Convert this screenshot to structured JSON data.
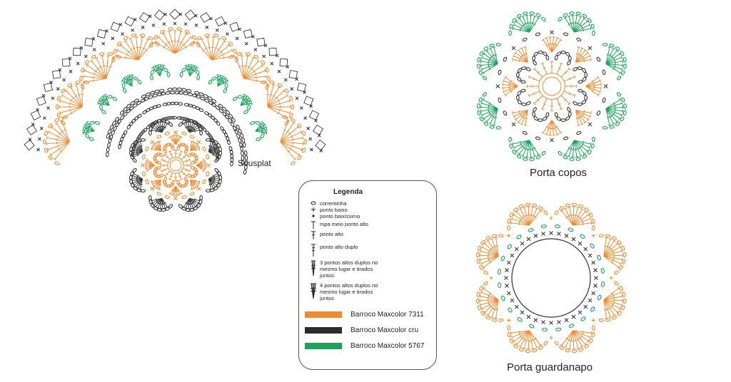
{
  "diagrams": {
    "sousplat": {
      "label": "Sousplat"
    },
    "porta_copos": {
      "label": "Porta copos"
    },
    "porta_guardanapo": {
      "label": "Porta guardanapo"
    }
  },
  "legend": {
    "title": "Legenda",
    "symbols": [
      {
        "icon": "chain-oval-icon",
        "text": "correntinha"
      },
      {
        "icon": "plus-cross-icon",
        "text": "ponto baixo"
      },
      {
        "icon": "dot-icon",
        "text": "ponto baixíssimo"
      },
      {
        "icon": "t-post-icon",
        "text": "mpa meio ponto alto"
      },
      {
        "icon": "t-post-one-bar-icon",
        "text": "ponto alto"
      },
      {
        "icon": "t-post-two-bar-icon",
        "text": "ponto alto duplo"
      },
      {
        "icon": "cluster-3-icon",
        "text": "3 pontos altos duplos no mesmo lugar e tirados juntos"
      },
      {
        "icon": "cluster-4-icon",
        "text": "4 pontos altos duplos no mesmo lugar e tirados juntos"
      }
    ],
    "colors": [
      {
        "name": "Barroco Maxcolor 7311",
        "color": "#f08a34"
      },
      {
        "name": "Barroco Maxcolor cru",
        "color": "#2b2b2b"
      },
      {
        "name": "Barroco Maxcolor 5767",
        "color": "#1fa15a"
      }
    ]
  },
  "palette": {
    "orange": "#f08a34",
    "dark": "#3a3a3a",
    "green": "#1fa15a"
  }
}
